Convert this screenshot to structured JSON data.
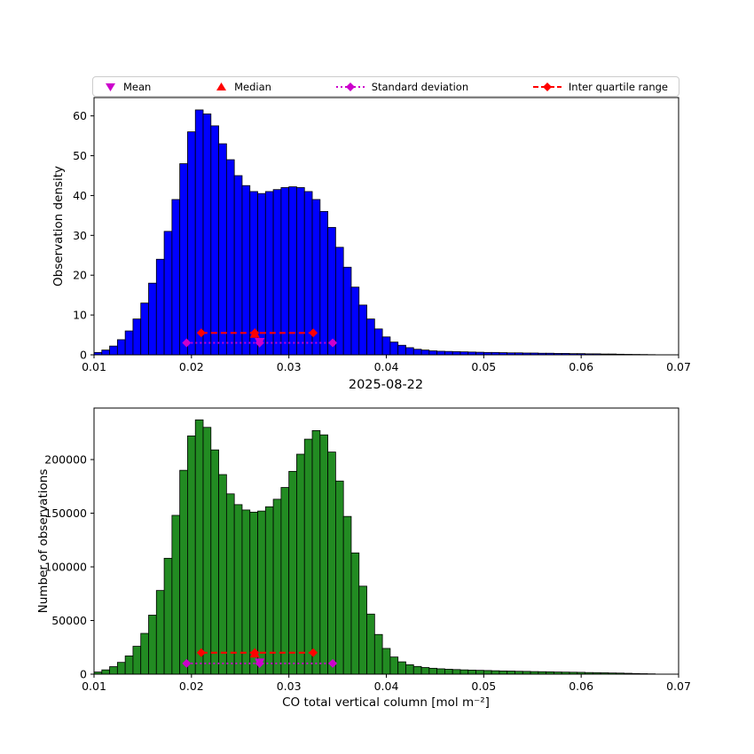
{
  "figure": {
    "background": "#ffffff",
    "title": "2025-08-22",
    "xlabel": "CO total vertical column [mol m⁻²]",
    "legend": {
      "items": [
        {
          "label": "Mean",
          "marker": "triangle-down",
          "color": "#cc00cc"
        },
        {
          "label": "Median",
          "marker": "triangle-up",
          "color": "#ff0000"
        },
        {
          "label": "Standard deviation",
          "marker": "diamond-dotted-line",
          "color": "#cc00cc"
        },
        {
          "label": "Inter quartile range",
          "marker": "diamond-dashed-line",
          "color": "#ff0000"
        }
      ]
    }
  },
  "chart_data": [
    {
      "type": "bar",
      "name": "observation-density-histogram",
      "ylabel": "Observation density",
      "bar_color": "#0000ff",
      "edge_color": "#000000",
      "bin_start": 0.01,
      "bin_width": 0.0008,
      "values": [
        0.6,
        1.2,
        2.2,
        3.8,
        6,
        9,
        13,
        18,
        24,
        31,
        39,
        48,
        56,
        61.5,
        60.5,
        57.5,
        53,
        49,
        45,
        42.5,
        41,
        40.5,
        41,
        41.5,
        42,
        42.2,
        42,
        41,
        39,
        36,
        32,
        27,
        22,
        17,
        12.5,
        9,
        6.5,
        4.5,
        3.2,
        2.4,
        1.8,
        1.4,
        1.2,
        1.0,
        0.9,
        0.85,
        0.8,
        0.75,
        0.7,
        0.65,
        0.6,
        0.6,
        0.55,
        0.5,
        0.5,
        0.45,
        0.45,
        0.4,
        0.4,
        0.35,
        0.35,
        0.3,
        0.3,
        0.25,
        0.25,
        0.2,
        0.2,
        0.15,
        0.12,
        0.1,
        0.08,
        0.05
      ],
      "xlim": [
        0.01,
        0.07
      ],
      "ylim": [
        0,
        64.6
      ],
      "xticks": [
        0.01,
        0.02,
        0.03,
        0.04,
        0.05,
        0.06,
        0.07
      ],
      "xtick_labels": [
        "0.01",
        "0.02",
        "0.03",
        "0.04",
        "0.05",
        "0.06",
        "0.07"
      ],
      "yticks": [
        0,
        10,
        20,
        30,
        40,
        50,
        60
      ],
      "ytick_labels": [
        "0",
        "10",
        "20",
        "30",
        "40",
        "50",
        "60"
      ],
      "stats": {
        "mean": 0.027,
        "std": 0.0075,
        "median": 0.0265,
        "q1": 0.021,
        "q3": 0.0325
      },
      "markers": {
        "iqr_y": 5.5,
        "std_y": 3.0,
        "iqr_color": "#ff0000",
        "std_color": "#cc00cc"
      }
    },
    {
      "type": "bar",
      "name": "number-of-observations-histogram",
      "ylabel": "Number of observations",
      "bar_color": "#228b22",
      "edge_color": "#000000",
      "bin_start": 0.01,
      "bin_width": 0.0008,
      "values": [
        2000,
        4000,
        7000,
        11000,
        17000,
        26000,
        38000,
        55000,
        78000,
        108000,
        148000,
        190000,
        222000,
        237000,
        230000,
        209000,
        186000,
        168000,
        158000,
        153000,
        151000,
        152000,
        156000,
        163000,
        174000,
        189000,
        205000,
        219000,
        227000,
        223000,
        207000,
        180000,
        147000,
        113000,
        82000,
        56000,
        37000,
        24000,
        16000,
        11500,
        8800,
        7200,
        6200,
        5500,
        5000,
        4600,
        4300,
        4000,
        3800,
        3600,
        3400,
        3200,
        3000,
        2900,
        2700,
        2600,
        2400,
        2300,
        2200,
        2000,
        1900,
        1800,
        1700,
        1500,
        1400,
        1300,
        1100,
        1000,
        800,
        600,
        450,
        300
      ],
      "xlim": [
        0.01,
        0.07
      ],
      "ylim": [
        0,
        248000
      ],
      "xticks": [
        0.01,
        0.02,
        0.03,
        0.04,
        0.05,
        0.06,
        0.07
      ],
      "xtick_labels": [
        "0.01",
        "0.02",
        "0.03",
        "0.04",
        "0.05",
        "0.06",
        "0.07"
      ],
      "yticks": [
        0,
        50000,
        100000,
        150000,
        200000
      ],
      "ytick_labels": [
        "0",
        "50000",
        "100000",
        "150000",
        "200000"
      ],
      "stats": {
        "mean": 0.027,
        "std": 0.0075,
        "median": 0.0265,
        "q1": 0.021,
        "q3": 0.0325
      },
      "markers": {
        "iqr_y": 20000,
        "std_y": 10000,
        "iqr_color": "#ff0000",
        "std_color": "#cc00cc"
      }
    }
  ]
}
